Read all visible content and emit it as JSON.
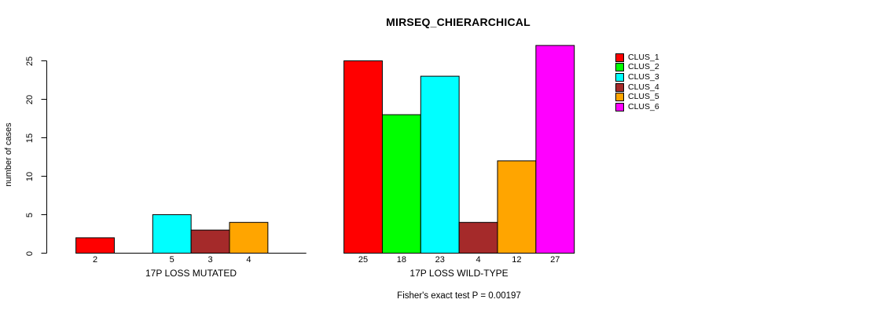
{
  "chart_data": {
    "type": "bar",
    "title": "MIRSEQ_CHIERARCHICAL",
    "ylabel": "number of cases",
    "categories": [
      "17P LOSS MUTATED",
      "17P LOSS WILD-TYPE"
    ],
    "series": [
      {
        "name": "CLUS_1",
        "color": "#FF0000",
        "values": [
          2,
          25
        ]
      },
      {
        "name": "CLUS_2",
        "color": "#00FF00",
        "values": [
          0,
          18
        ]
      },
      {
        "name": "CLUS_3",
        "color": "#00FFFF",
        "values": [
          5,
          23
        ]
      },
      {
        "name": "CLUS_4",
        "color": "#A52A2A",
        "values": [
          3,
          4
        ]
      },
      {
        "name": "CLUS_5",
        "color": "#FFA500",
        "values": [
          4,
          12
        ]
      },
      {
        "name": "CLUS_6",
        "color": "#FF00FF",
        "values": [
          0,
          27
        ]
      }
    ],
    "yticks": [
      0,
      5,
      10,
      15,
      20,
      25
    ],
    "ylim": [
      0,
      27
    ],
    "bar_value_labels_visible": true,
    "zero_value_bars_hidden": true,
    "legend_position": "right",
    "legend_border": "none",
    "grid": "off",
    "axis_color": "#000000",
    "background_color": "#FFFFFF",
    "annotation": "Fisher's exact test P = 0.00197"
  }
}
